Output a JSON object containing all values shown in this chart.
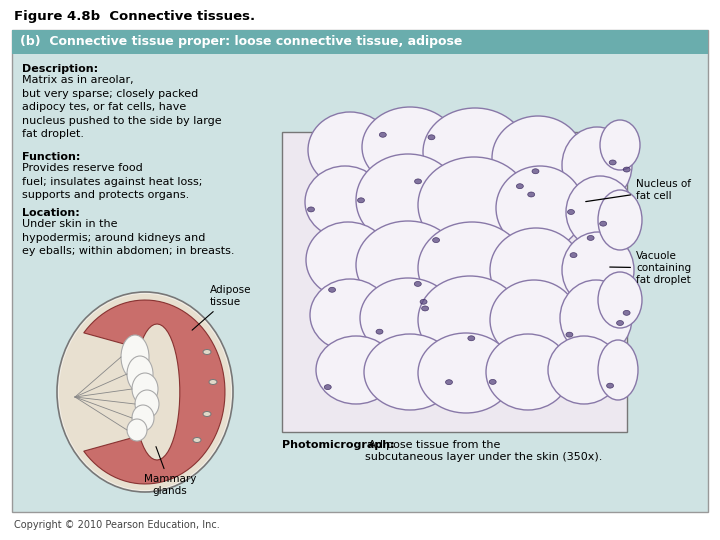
{
  "figure_title": "Figure 4.8b  Connective tissues.",
  "panel_title": "(b)  Connective tissue proper: loose connective tissue, adipose",
  "panel_title_bg": "#6aadad",
  "panel_bg": "#cfe3e3",
  "panel_border": "#999999",
  "desc_bold": "Description:",
  "desc_text": "Matrix as in areolar,\nbut very sparse; closely packed\nadipocy tes, or fat cells, have\nnucleus pushed to the side by large\nfat droplet.",
  "func_bold": "Function:",
  "func_text": "Provides reserve food\nfuel; insulates against heat loss;\nsupports and protects organs.",
  "loc_bold": "Location:",
  "loc_text": "Under skin in the\nhypodermis; around kidneys and\ney eballs; within abdomen; in breasts.",
  "label_adipose": "Adipose\ntissue",
  "label_mammary": "Mammary\nglands",
  "label_nucleus": "Nucleus of\nfat cell",
  "label_vacuole": "Vacuole\ncontaining\nfat droplet",
  "photo_caption_bold": "Photomicrograph:",
  "photo_caption_text": " Adipose tissue from the\nsubcutaneous layer under the skin (350x).",
  "copyright": "Copyright © 2010 Pearson Education, Inc.",
  "text_color": "#000000",
  "title_color": "#000000",
  "panel_title_text_color": "#ffffff",
  "bg_color": "#ffffff",
  "photo_bg": "#ede8f0",
  "cell_face": "#f5f2f8",
  "cell_edge": "#8878a8",
  "nucleus_face": "#5a4880",
  "nucleus_edge": "#2a1850"
}
